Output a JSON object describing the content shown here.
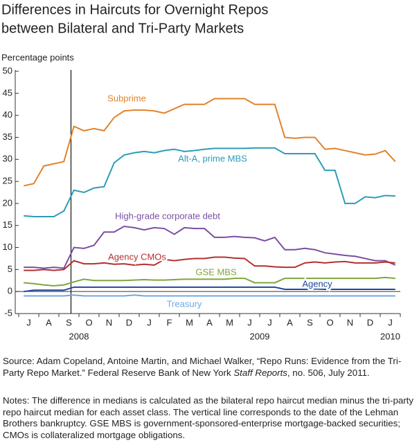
{
  "chart_data": {
    "type": "line",
    "title": [
      "Differences in Haircuts for Overnight Repos",
      "between Bilateral and Tri-Party Markets"
    ],
    "y_label": "Percentage points",
    "categories": [
      "J",
      null,
      "A",
      null,
      "S",
      null,
      "O",
      null,
      "N",
      null,
      "D",
      null,
      "J",
      null,
      "F",
      null,
      "M",
      null,
      "A",
      null,
      "M",
      null,
      "J",
      null,
      "J",
      null,
      "A",
      null,
      "S",
      null,
      "O",
      null,
      "N",
      null,
      "D",
      null,
      "J",
      null
    ],
    "years": [
      "2008",
      "2009",
      "2010"
    ],
    "ylim": [
      -5,
      50
    ],
    "yticks": [
      -5,
      0,
      5,
      10,
      15,
      20,
      25,
      30,
      35,
      40,
      45,
      50
    ],
    "series": [
      {
        "name": "Subprime",
        "color": "#e2822a",
        "values": [
          24,
          24.5,
          28.5,
          29,
          29.5,
          37.5,
          36.5,
          37,
          36.5,
          39.5,
          41,
          41.2,
          41.2,
          41,
          40.5,
          41.5,
          42.5,
          42.5,
          42.5,
          43.8,
          43.8,
          43.8,
          43.8,
          42.5,
          42.5,
          42.5,
          35,
          34.8,
          35,
          35,
          32.3,
          32.5,
          32,
          31.5,
          31,
          31.2,
          32,
          29.5
        ]
      },
      {
        "name": "Alt-A, prime MBS",
        "color": "#2b9cb8",
        "values": [
          17.2,
          17,
          17,
          17,
          18.3,
          23,
          22.5,
          23.5,
          23.8,
          29.2,
          31,
          31.5,
          31.8,
          31.5,
          32,
          32.3,
          31.8,
          32,
          32.3,
          32.5,
          32.5,
          32.5,
          32.5,
          32.6,
          32.6,
          32.6,
          31.3,
          31.3,
          31.3,
          31.3,
          27.5,
          27.5,
          20,
          20,
          21.5,
          21.3,
          21.8,
          21.7
        ]
      },
      {
        "name": "High-grade corporate debt",
        "color": "#7a4ea3",
        "values": [
          5.5,
          5.5,
          5.3,
          5.5,
          5.3,
          10,
          9.8,
          10.5,
          13.5,
          13.5,
          14.8,
          14.5,
          14,
          14.5,
          14.3,
          13,
          14.5,
          14.3,
          14.3,
          12.3,
          12.3,
          12.5,
          12.3,
          12.2,
          11.5,
          12.3,
          9.5,
          9.5,
          9.8,
          9.5,
          8.8,
          8.5,
          8.2,
          8,
          7.5,
          7,
          7,
          6
        ]
      },
      {
        "name": "Agency CMOs",
        "color": "#b3302e",
        "values": [
          4.8,
          4.8,
          5,
          4.8,
          5,
          7,
          6.3,
          6.3,
          6.5,
          6.2,
          6.3,
          6,
          6.2,
          6,
          7.3,
          7,
          7.3,
          7.5,
          7.5,
          7.8,
          7.8,
          7.6,
          7.5,
          5.8,
          5.8,
          5.6,
          5.5,
          5.5,
          6.5,
          6.7,
          6.5,
          6.7,
          6.8,
          6.5,
          6.5,
          6.5,
          6.7,
          6.5
        ]
      },
      {
        "name": "GSE MBS",
        "color": "#7da63c",
        "values": [
          2,
          1.8,
          1.5,
          1.3,
          1.5,
          2.2,
          2.8,
          2.5,
          2.5,
          2.5,
          2.5,
          2.6,
          2.7,
          2.6,
          2.6,
          2.7,
          2.8,
          2.8,
          2.8,
          2.8,
          2.8,
          3,
          3,
          2,
          2,
          2,
          3,
          3,
          3,
          3,
          3,
          3,
          3,
          3,
          3,
          3,
          3.2,
          3
        ]
      },
      {
        "name": "Agency",
        "color": "#24449c",
        "values": [
          0,
          0.3,
          0.3,
          0.3,
          0.3,
          1,
          1,
          1,
          1,
          1,
          1,
          1,
          1,
          1,
          1,
          1,
          1,
          1,
          1,
          1,
          1,
          1,
          1,
          1,
          1,
          1,
          0.5,
          0.5,
          0.5,
          0.6,
          0.5,
          0.5,
          0.5,
          0.5,
          0.5,
          0.5,
          0.5,
          0.5
        ]
      },
      {
        "name": "Treasury",
        "color": "#6fa8dc",
        "values": [
          -1,
          -1,
          -1,
          -1,
          -1,
          -0.8,
          -1,
          -1,
          -1,
          -1,
          -1,
          -0.8,
          -1,
          -1,
          -1,
          -1,
          -1,
          -1,
          -1,
          -1,
          -1,
          -1,
          -1,
          -1,
          -1,
          -1,
          -1,
          -1,
          -1,
          -1,
          -1,
          -1,
          -1,
          -1,
          -1,
          -1,
          -1,
          -1
        ]
      }
    ],
    "source": [
      "Source: Adam Copeland, Antoine Martin, and Michael Walker, “Repo Runs: Evidence from the Tri-Party Repo Market.” Federal Reserve Bank of New York ",
      "Staff Reports",
      ", no. 506, July 2011."
    ],
    "notes": "Notes: The difference in medians is calculated as the bilateral repo haircut median minus the tri-party repo haircut median for each asset class. The vertical line corresponds to the date of the Lehman Brothers bankruptcy. GSE MBS is government-sponsored-enterprise mortgage-backed securities; CMOs is collateralized mortgage obligations."
  }
}
